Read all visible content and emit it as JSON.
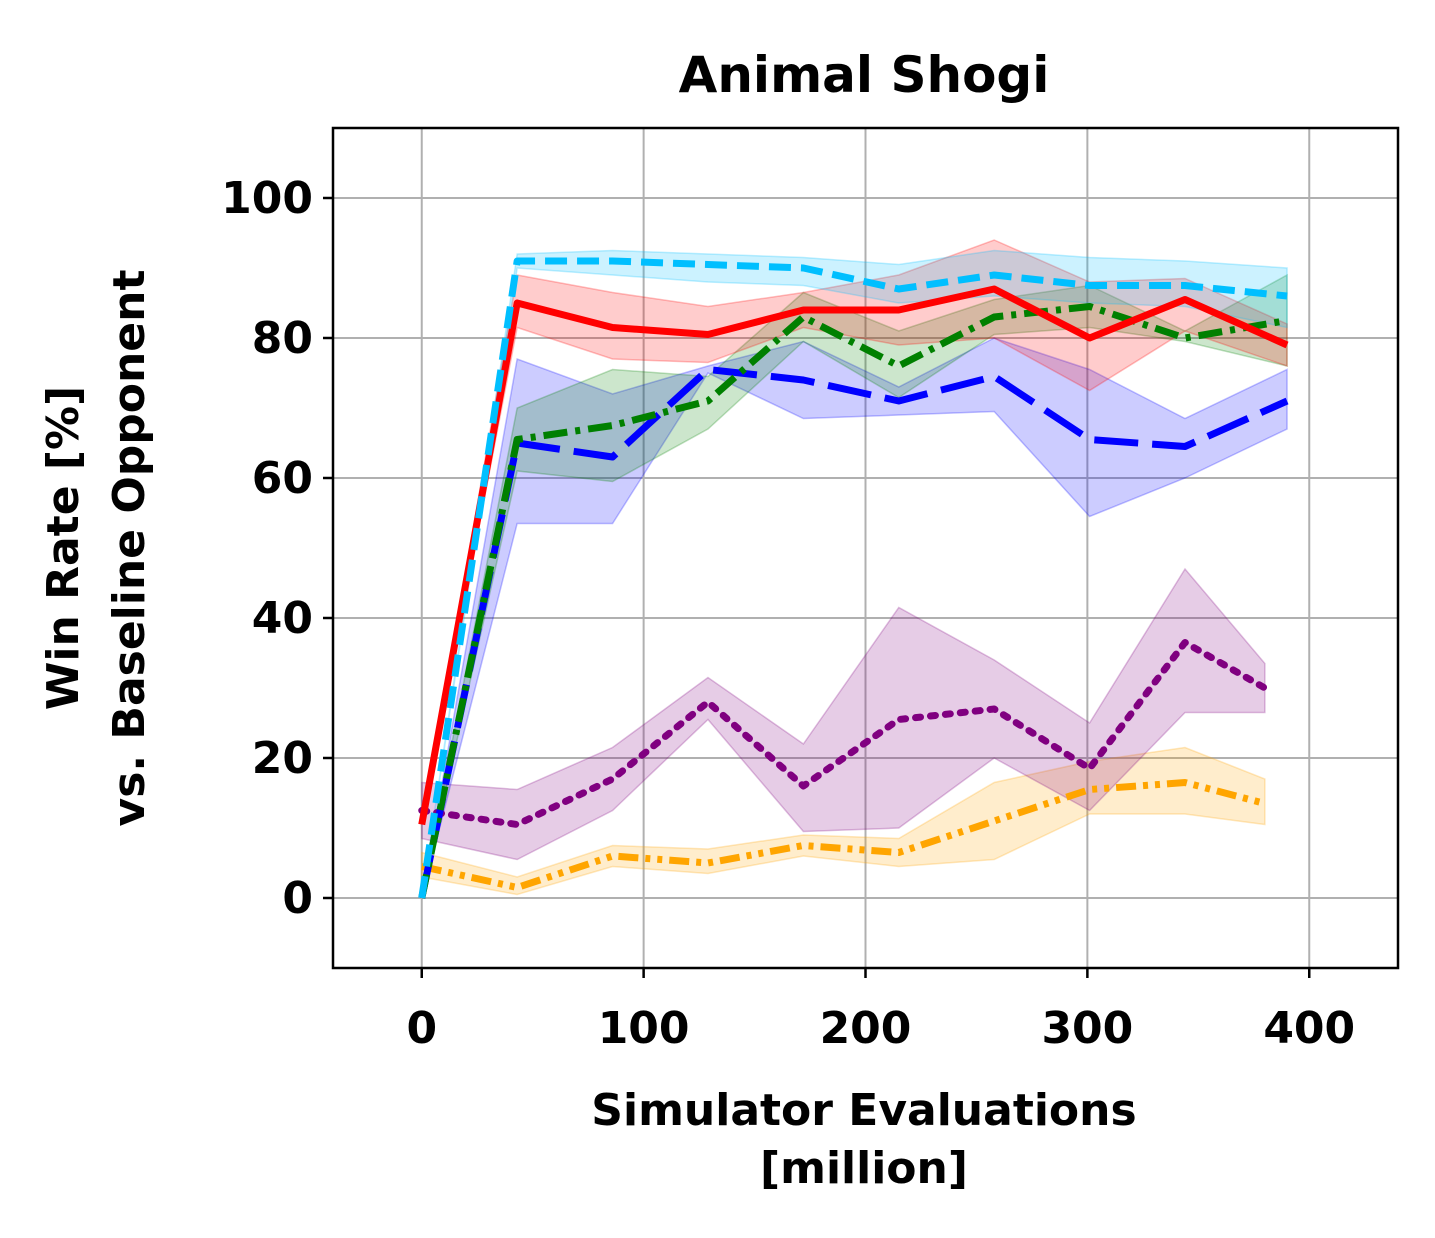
{
  "chart_data": {
    "type": "line",
    "title": "Animal Shogi",
    "xlabel": [
      "Simulator Evaluations",
      "[million]"
    ],
    "ylabel": [
      "Win Rate [%]",
      "vs. Baseline Opponent"
    ],
    "xlim": [
      -40,
      440
    ],
    "ylim": [
      -10,
      110
    ],
    "xticks": [
      0,
      100,
      200,
      300,
      400
    ],
    "yticks": [
      0,
      20,
      40,
      60,
      80,
      100
    ],
    "grid": true,
    "legend": "none",
    "series": [
      {
        "name": "orange",
        "color": "#ffa500",
        "dash": "dashdotdot",
        "x": [
          0,
          43,
          86,
          129,
          172,
          215,
          258,
          301,
          344,
          380
        ],
        "values": [
          4.5,
          1.5,
          6,
          5,
          7.5,
          6.5,
          11,
          15.5,
          16.5,
          13.5
        ],
        "lower": [
          3,
          0.5,
          4.5,
          3.5,
          6,
          4.5,
          5.5,
          12,
          12,
          10.5
        ],
        "upper": [
          6.5,
          3,
          7.5,
          7,
          9,
          8.5,
          16.5,
          19.5,
          21.5,
          17
        ]
      },
      {
        "name": "purple",
        "color": "#800080",
        "dash": "dotted",
        "x": [
          0,
          43,
          86,
          129,
          172,
          215,
          258,
          301,
          344,
          380
        ],
        "values": [
          12.5,
          10.5,
          17,
          28,
          16,
          25.5,
          27,
          18.5,
          36.5,
          30
        ],
        "lower": [
          8.5,
          5.5,
          12.5,
          25.5,
          9.5,
          10,
          20,
          12.5,
          26.5,
          26.5
        ],
        "upper": [
          16.5,
          15.5,
          21.5,
          31.5,
          22,
          41.5,
          34,
          25,
          47,
          33.5
        ]
      },
      {
        "name": "blue",
        "color": "#0000ff",
        "dash": "longdash",
        "x": [
          0,
          43,
          86,
          129,
          172,
          215,
          258,
          301,
          344,
          390
        ],
        "values": [
          0,
          65,
          63,
          75.5,
          74,
          71,
          74.5,
          65.5,
          64.5,
          71
        ],
        "lower": [
          0,
          53.5,
          53.5,
          75,
          68.5,
          69,
          69.5,
          54.5,
          60,
          67
        ],
        "upper": [
          0,
          77,
          72,
          76,
          79.5,
          73,
          80,
          75.5,
          68.5,
          75.5
        ]
      },
      {
        "name": "green",
        "color": "#008000",
        "dash": "dashdot",
        "x": [
          0,
          43,
          86,
          129,
          172,
          215,
          258,
          301,
          344,
          390
        ],
        "values": [
          0,
          65.5,
          67.5,
          71,
          83,
          76,
          83,
          84.5,
          80,
          82.5
        ],
        "lower": [
          0,
          61,
          59.5,
          67,
          79.5,
          71.5,
          80.5,
          81.5,
          79.5,
          76
        ],
        "upper": [
          0,
          70,
          75.5,
          74.5,
          86.5,
          81,
          85.5,
          87.5,
          81,
          89
        ]
      },
      {
        "name": "red",
        "color": "#ff0000",
        "dash": "solid",
        "x": [
          0,
          43,
          86,
          129,
          172,
          215,
          258,
          301,
          344,
          390
        ],
        "values": [
          10.5,
          85,
          81.5,
          80.5,
          84,
          84,
          87,
          80,
          85.5,
          79
        ],
        "lower": [
          10.5,
          81.5,
          77,
          76.5,
          81.5,
          79,
          80,
          72.5,
          81,
          76
        ],
        "upper": [
          10.5,
          89,
          86.5,
          84.5,
          86.5,
          89,
          94,
          88,
          88.5,
          82
        ]
      },
      {
        "name": "light-blue",
        "color": "#00bfff",
        "dash": "dashed",
        "x": [
          0,
          43,
          86,
          129,
          172,
          215,
          258,
          301,
          344,
          390
        ],
        "values": [
          0,
          91,
          91,
          90.5,
          90,
          87,
          89,
          87.5,
          87.5,
          86
        ],
        "lower": [
          0,
          90,
          89,
          88,
          87.5,
          85,
          86,
          85,
          84.5,
          81.5
        ],
        "upper": [
          0,
          92,
          92.5,
          92,
          91.5,
          90.5,
          92.5,
          91.5,
          91,
          90
        ]
      }
    ]
  }
}
